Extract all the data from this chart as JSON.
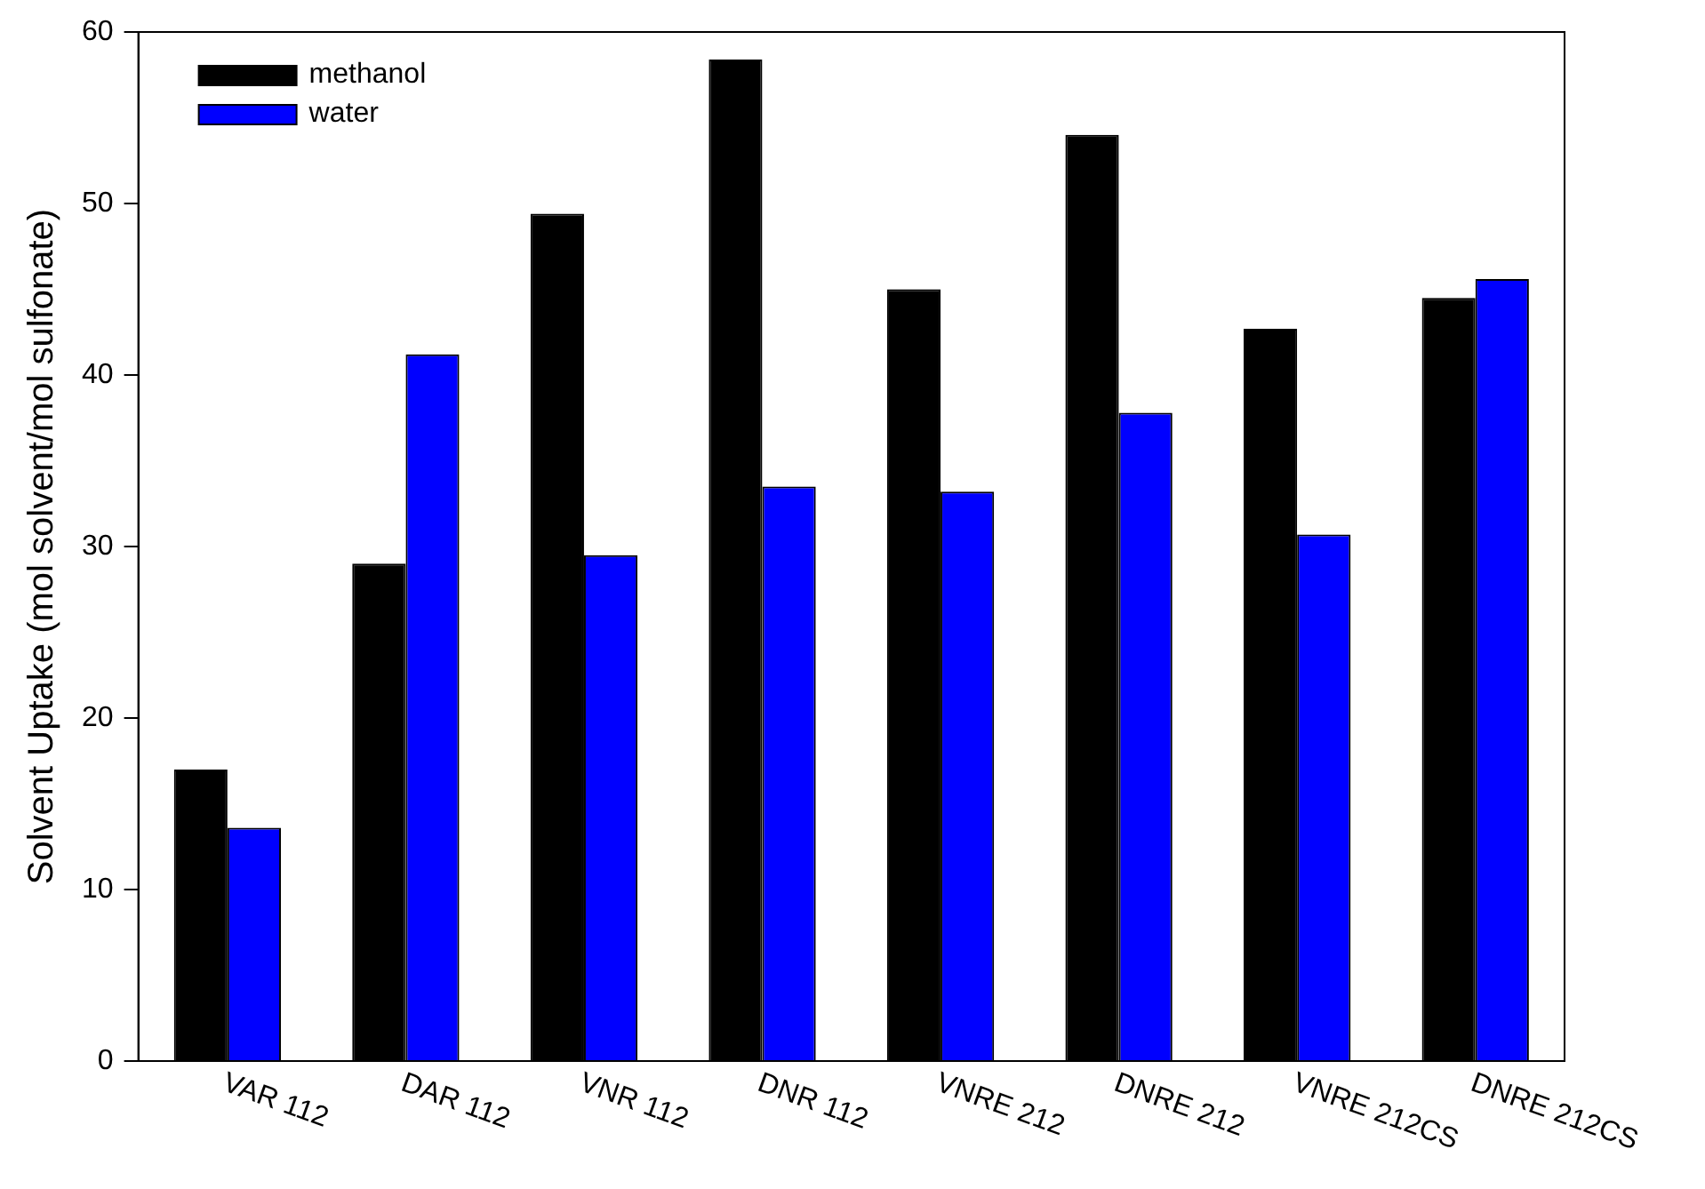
{
  "chart_data": {
    "type": "bar",
    "ylabel": "Solvent Uptake (mol solvent/mol sulfonate)",
    "categories": [
      "VAR 112",
      "DAR 112",
      "VNR 112",
      "DNR 112",
      "VNRE 212",
      "DNRE 212",
      "VNRE 212CS",
      "DNRE 212CS"
    ],
    "series": [
      {
        "name": "methanol",
        "color": "#000000",
        "values": [
          17,
          29,
          49.4,
          58.4,
          45,
          54,
          42.7,
          44.5
        ]
      },
      {
        "name": "water",
        "color": "#0000ff",
        "values": [
          13.6,
          41.2,
          29.5,
          33.5,
          33.2,
          37.8,
          30.7,
          45.6
        ]
      }
    ],
    "ylim": [
      0,
      60
    ],
    "yticks": [
      0,
      10,
      20,
      30,
      40,
      50,
      60
    ],
    "grid": false,
    "legend": "top left"
  }
}
